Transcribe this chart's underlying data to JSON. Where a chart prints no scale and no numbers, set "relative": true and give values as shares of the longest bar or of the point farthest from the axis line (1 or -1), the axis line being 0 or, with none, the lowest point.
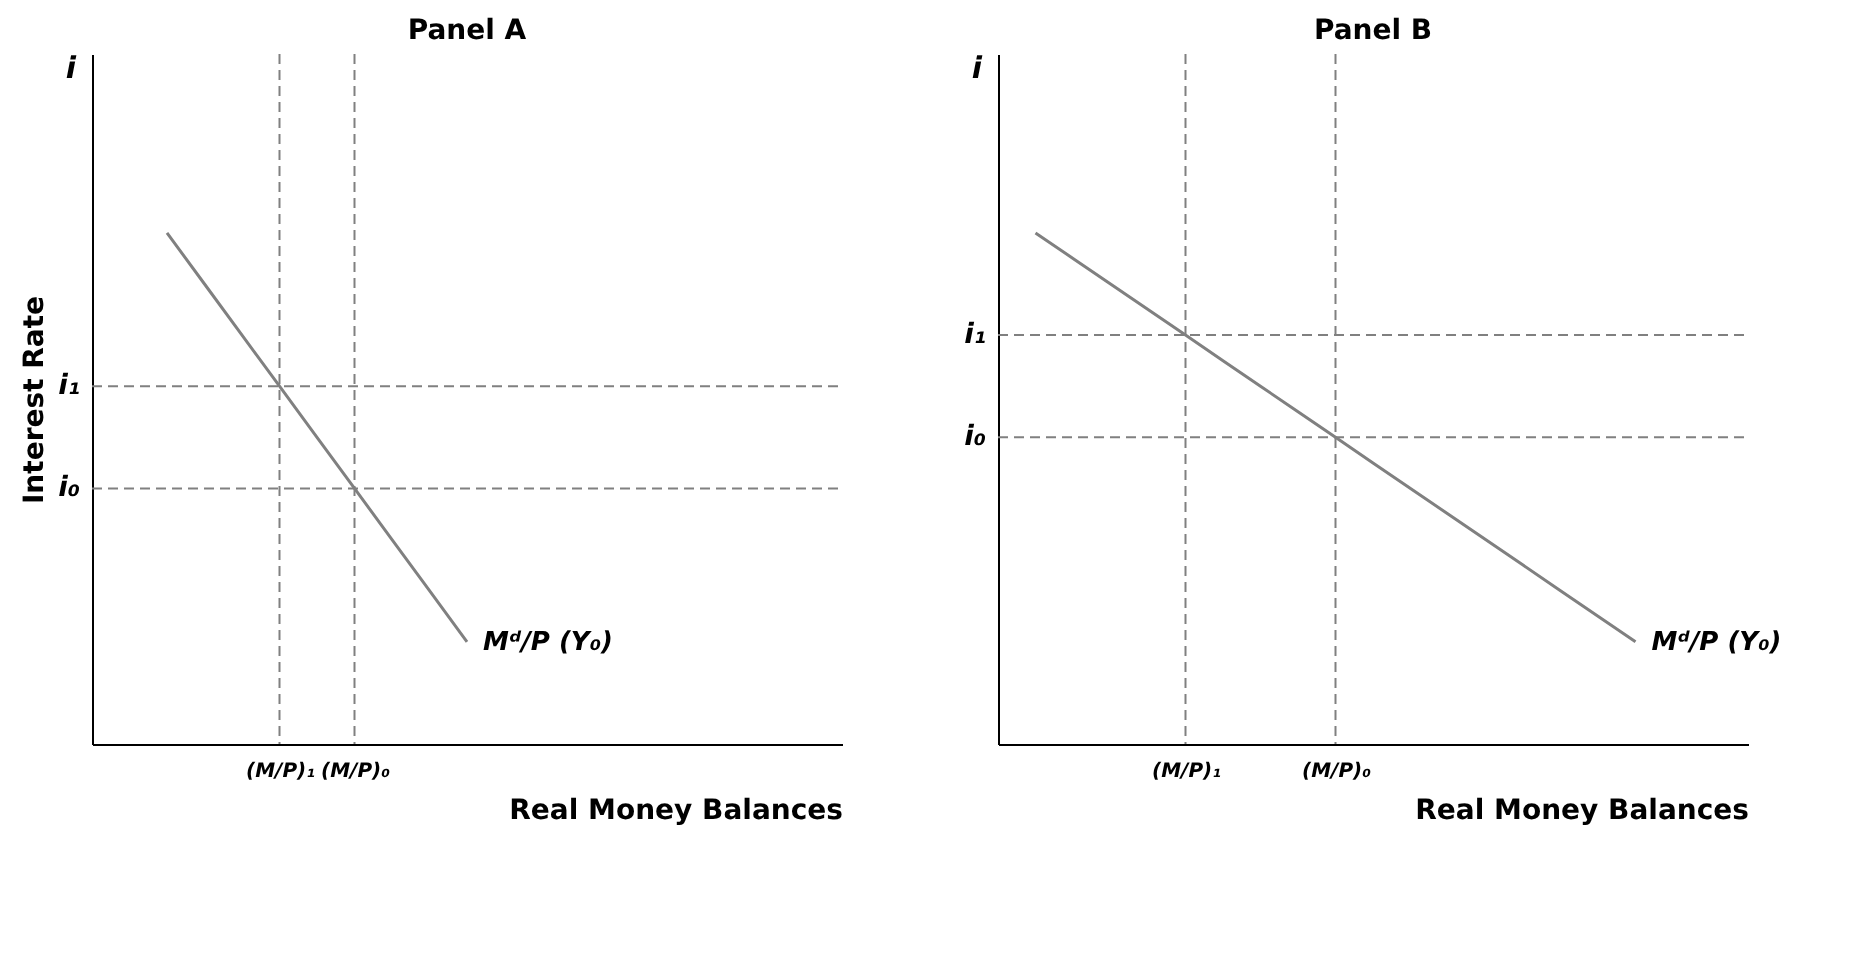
{
  "chart_data": [
    {
      "type": "line",
      "title": "Panel A",
      "xlabel": "Real Money Balances",
      "ylabel": "Interest Rate",
      "relative": true,
      "tick_labels": "x",
      "grid": false,
      "categories": [
        null,
        null,
        null,
        null,
        null,
        "(M/P)₁",
        null,
        "(M/P)₀",
        null,
        null,
        null,
        null,
        null,
        null,
        null,
        null,
        null,
        null,
        null,
        null,
        null
      ],
      "series": [
        {
          "color": "#808080",
          "values": [
            null,
            null,
            1,
            0.9,
            0.8,
            0.7,
            0.6,
            0.5,
            0.4,
            0.3,
            0.2,
            null,
            null,
            null,
            null,
            null,
            null,
            null,
            null,
            null,
            null
          ]
        }
      ],
      "ref_lines": [
        {
          "axis": "y",
          "value": 0.7,
          "label": "i₁",
          "line_style": "dashed"
        },
        {
          "axis": "y",
          "value": 0.5,
          "label": "i₀",
          "line_style": "dashed"
        },
        {
          "axis": "x",
          "value": "(M/P)₁",
          "line_style": "dashed"
        },
        {
          "axis": "x",
          "value": "(M/P)₀",
          "line_style": "dashed"
        }
      ],
      "annotations": [
        "i",
        "Mᵈ/P (Y₀)"
      ]
    },
    {
      "type": "line",
      "title": "Panel B",
      "xlabel": "Real Money Balances",
      "relative": true,
      "tick_labels": "x",
      "grid": false,
      "categories": [
        null,
        null,
        null,
        null,
        null,
        "(M/P)₁",
        null,
        null,
        null,
        "(M/P)₀",
        null,
        null,
        null,
        null,
        null,
        null,
        null,
        null,
        null,
        null,
        null
      ],
      "series": [
        {
          "color": "#808080",
          "values": [
            null,
            1,
            0.95,
            0.9,
            0.85,
            0.8,
            0.75,
            0.7,
            0.65,
            0.6,
            0.55,
            0.5,
            0.45,
            0.4,
            0.35,
            0.3,
            0.25,
            0.2,
            null,
            null,
            null
          ]
        }
      ],
      "ref_lines": [
        {
          "axis": "y",
          "value": 0.8,
          "label": "i₁",
          "line_style": "dashed"
        },
        {
          "axis": "y",
          "value": 0.6,
          "label": "i₀",
          "line_style": "dashed"
        },
        {
          "axis": "x",
          "value": "(M/P)₁",
          "line_style": "dashed"
        },
        {
          "axis": "x",
          "value": "(M/P)₀",
          "line_style": "dashed"
        }
      ],
      "annotations": [
        "i",
        "Mᵈ/P (Y₀)"
      ]
    }
  ]
}
